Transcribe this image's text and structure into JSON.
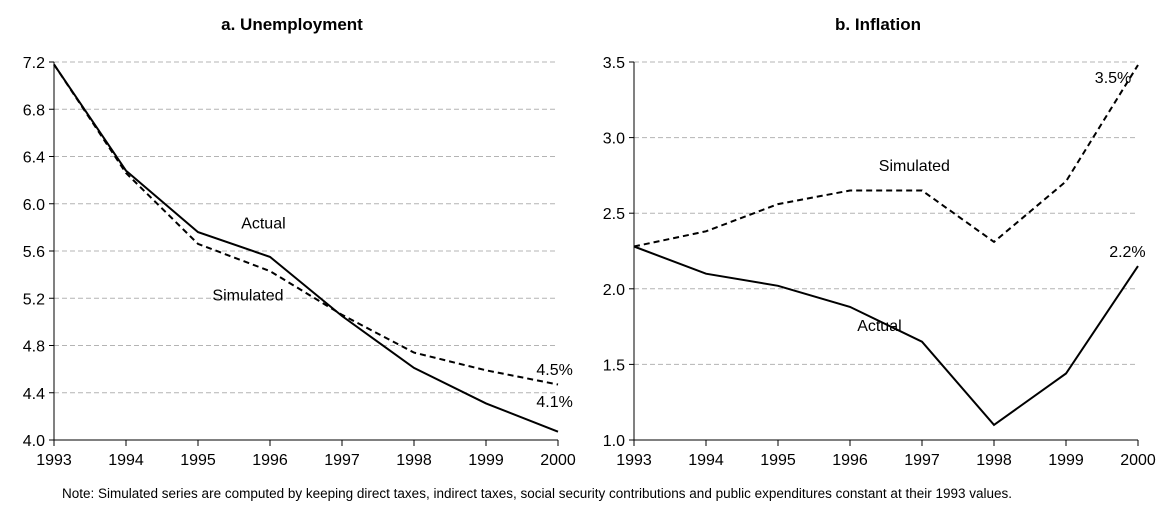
{
  "chart_data": [
    {
      "id": "unemployment",
      "type": "line",
      "title": "a.  Unemployment",
      "x": [
        1993,
        1994,
        1995,
        1996,
        1997,
        1998,
        1999,
        2000
      ],
      "xticks": [
        "1993",
        "1994",
        "1995",
        "1996",
        "1997",
        "1998",
        "1999",
        "2000"
      ],
      "ylim": [
        4.0,
        7.2
      ],
      "yticks": [
        "4.0",
        "4.4",
        "4.8",
        "5.2",
        "5.6",
        "6.0",
        "6.4",
        "6.8",
        "7.2"
      ],
      "grid": true,
      "series": [
        {
          "name": "Actual",
          "style": "solid",
          "values": [
            7.18,
            6.28,
            5.76,
            5.55,
            5.05,
            4.61,
            4.31,
            4.07
          ]
        },
        {
          "name": "Simulated",
          "style": "dashed",
          "values": [
            7.18,
            6.26,
            5.66,
            5.43,
            5.06,
            4.74,
            4.59,
            4.47
          ]
        }
      ],
      "annotations": [
        {
          "text": "Actual",
          "x": 1995.6,
          "y": 5.79
        },
        {
          "text": "Simulated",
          "x": 1995.2,
          "y": 5.18
        },
        {
          "text": "4.5%",
          "x": 1999.7,
          "y": 4.55
        },
        {
          "text": "4.1%",
          "x": 1999.7,
          "y": 4.28
        }
      ]
    },
    {
      "id": "inflation",
      "type": "line",
      "title": "b.  Inflation",
      "x": [
        1993,
        1994,
        1995,
        1996,
        1997,
        1998,
        1999,
        2000
      ],
      "xticks": [
        "1993",
        "1994",
        "1995",
        "1996",
        "1997",
        "1998",
        "1999",
        "2000"
      ],
      "ylim": [
        1.0,
        3.5
      ],
      "yticks": [
        "1.0",
        "1.5",
        "2.0",
        "2.5",
        "3.0",
        "3.5"
      ],
      "grid": true,
      "series": [
        {
          "name": "Actual",
          "style": "solid",
          "values": [
            2.28,
            2.1,
            2.02,
            1.88,
            1.65,
            1.1,
            1.44,
            2.15
          ]
        },
        {
          "name": "Simulated",
          "style": "dashed",
          "values": [
            2.28,
            2.38,
            2.56,
            2.65,
            2.65,
            2.31,
            2.71,
            3.48
          ]
        }
      ],
      "annotations": [
        {
          "text": "Simulated",
          "x": 1996.4,
          "y": 2.78
        },
        {
          "text": "Actual",
          "x": 1996.1,
          "y": 1.72
        },
        {
          "text": "3.5%",
          "x": 1999.4,
          "y": 3.36
        },
        {
          "text": "2.2%",
          "x": 1999.6,
          "y": 2.21
        }
      ]
    }
  ],
  "note": "Note: Simulated series are computed by keeping direct taxes, indirect taxes, social security contributions and public expenditures constant at their 1993 values."
}
